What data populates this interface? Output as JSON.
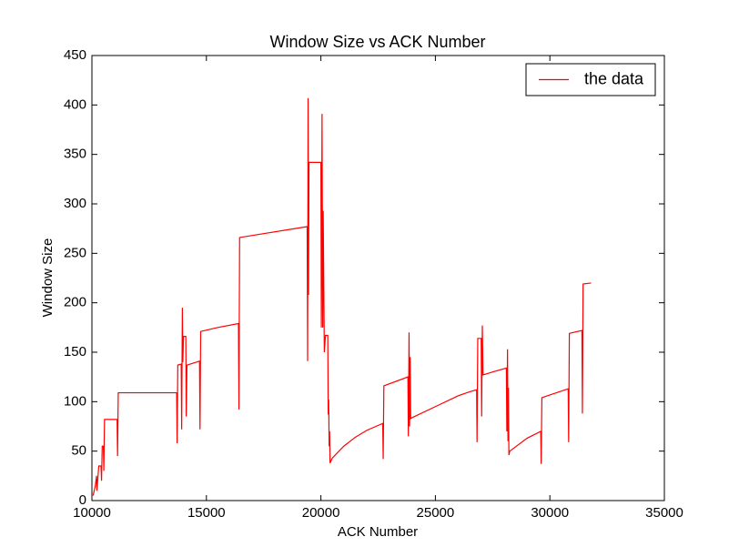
{
  "chart_data": {
    "type": "line",
    "title": "Window Size vs ACK Number",
    "xlabel": "ACK Number",
    "ylabel": "Window Size",
    "x": [
      10050,
      10100,
      10150,
      10200,
      10220,
      10250,
      10300,
      10400,
      10420,
      10450,
      10500,
      10520,
      10550,
      11100,
      11120,
      11150,
      13700,
      13720,
      13750,
      13900,
      13920,
      13950,
      13970,
      14000,
      14100,
      14120,
      14150,
      14700,
      14720,
      14750,
      15500,
      16400,
      16420,
      16450,
      19400,
      19420,
      19440,
      19460,
      19480,
      20000,
      20020,
      20050,
      20080,
      20100,
      20150,
      20200,
      20300,
      20320,
      20340,
      20360,
      20380,
      20400,
      20500,
      21000,
      21500,
      22000,
      22700,
      22720,
      22750,
      23800,
      23820,
      23850,
      23870,
      23900,
      23920,
      24000,
      25000,
      26000,
      26500,
      26800,
      26820,
      26850,
      27000,
      27020,
      27050,
      27080,
      27500,
      28100,
      28120,
      28150,
      28170,
      28190,
      28210,
      28250,
      29000,
      29600,
      29620,
      29650,
      30800,
      30820,
      30850,
      31400,
      31420,
      31450,
      31800
    ],
    "series": [
      {
        "name": "the data",
        "color": "#ff0000",
        "values": [
          5,
          10,
          15,
          25,
          10,
          20,
          35,
          35,
          20,
          55,
          55,
          30,
          82,
          82,
          45,
          109,
          109,
          58,
          137,
          138,
          72,
          195,
          140,
          166,
          166,
          85,
          137,
          141,
          72,
          171,
          175,
          179,
          92,
          266,
          277,
          141,
          407,
          208,
          342,
          342,
          175,
          391,
          175,
          293,
          150,
          167,
          167,
          87,
          102,
          55,
          70,
          38,
          43,
          55,
          64,
          71,
          78,
          42,
          116,
          125,
          65,
          170,
          75,
          145,
          83,
          84,
          95,
          106,
          110,
          112,
          59,
          164,
          164,
          85,
          177,
          127,
          130,
          134,
          70,
          153,
          60,
          114,
          46,
          50,
          63,
          70,
          37,
          104,
          113,
          59,
          169,
          172,
          88,
          219,
          220
        ]
      }
    ],
    "xlim": [
      10000,
      35000
    ],
    "xticks": [
      10000,
      15000,
      20000,
      25000,
      30000,
      35000
    ],
    "ylim": [
      0,
      450
    ],
    "yticks": [
      0,
      50,
      100,
      150,
      200,
      250,
      300,
      350,
      400,
      450
    ],
    "legend": "upper right"
  }
}
